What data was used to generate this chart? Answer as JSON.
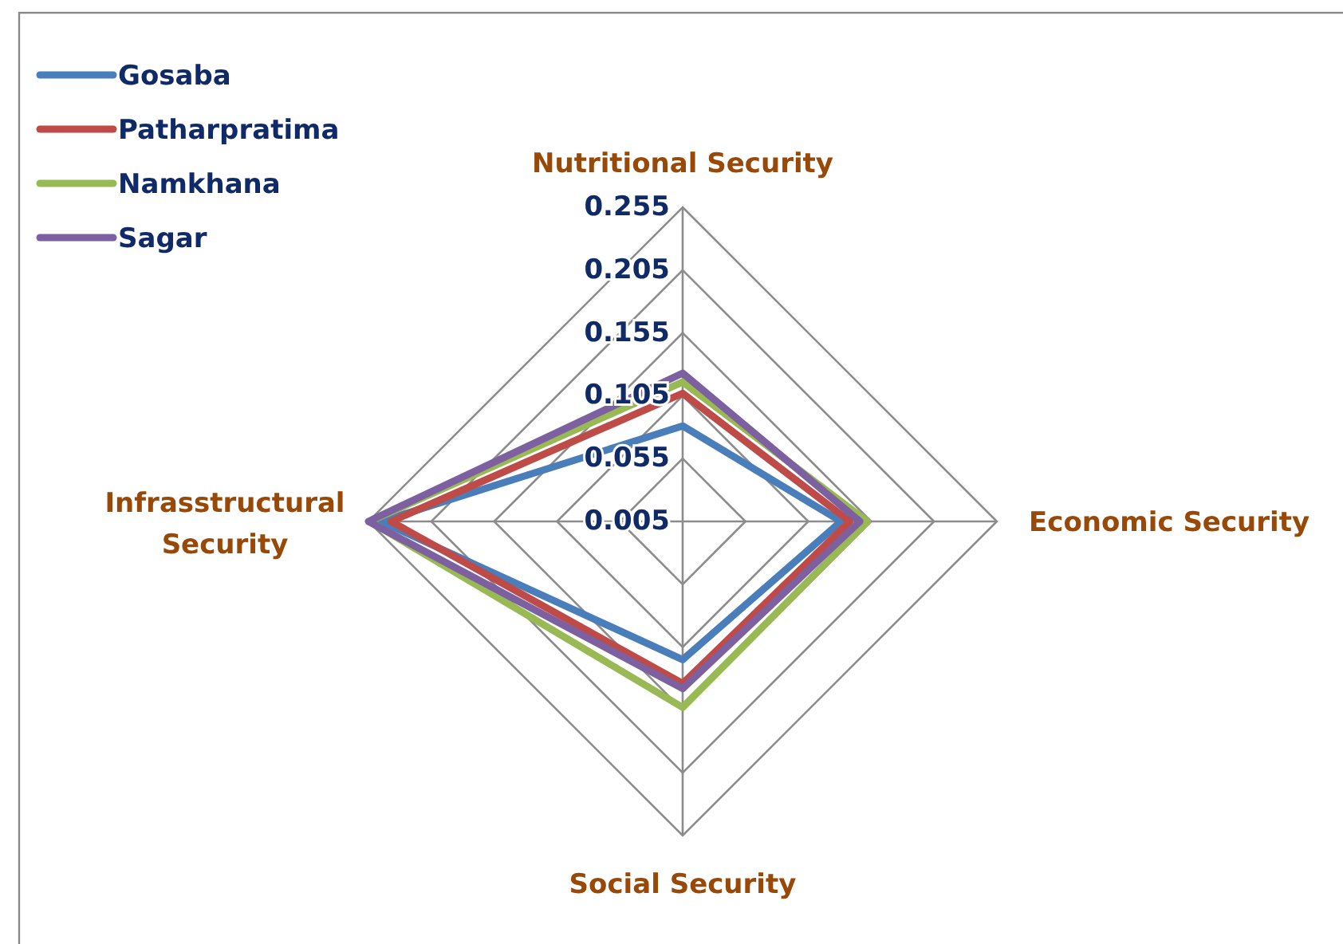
{
  "chart_data": {
    "type": "radar",
    "categories": [
      "Nutritional Security",
      "Economic Security",
      "Social Security",
      "Infrasstructural Security"
    ],
    "series": [
      {
        "name": "Gosaba",
        "color": "#4a7ebb",
        "values": [
          0.081,
          0.131,
          0.115,
          0.245
        ]
      },
      {
        "name": "Patharpratima",
        "color": "#be4b48",
        "values": [
          0.107,
          0.138,
          0.134,
          0.237
        ]
      },
      {
        "name": "Namkhana",
        "color": "#98b954",
        "values": [
          0.116,
          0.152,
          0.153,
          0.254
        ]
      },
      {
        "name": "Sagar",
        "color": "#7d60a0",
        "values": [
          0.123,
          0.146,
          0.138,
          0.255
        ]
      }
    ],
    "ylim": [
      0.005,
      0.255
    ],
    "yticks": [
      0.005,
      0.055,
      0.105,
      0.155,
      0.205,
      0.255
    ],
    "grid": true,
    "legend": "top left"
  }
}
